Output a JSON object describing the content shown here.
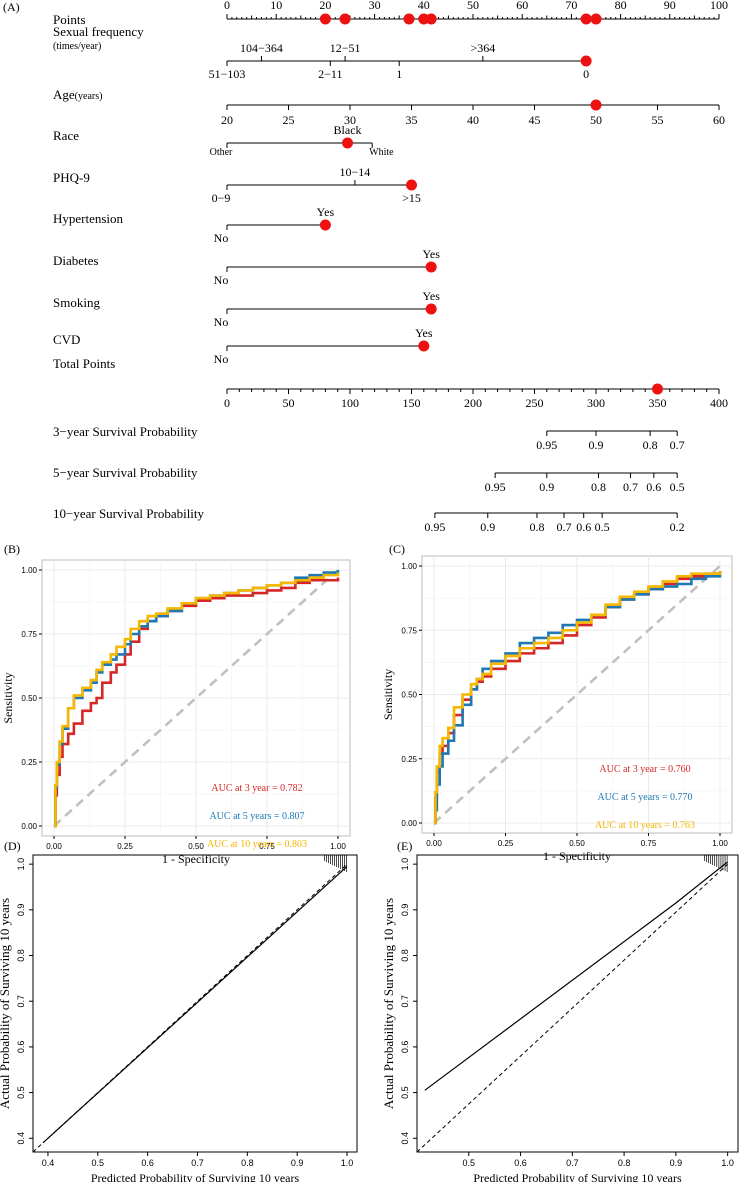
{
  "colors": {
    "axis": "#000000",
    "marker": "#ee1111",
    "roc3": "#d62728",
    "roc5": "#1f77b4",
    "roc10": "#f5b700",
    "diag": "#c0c0c0",
    "grid": "#ebebeb"
  },
  "chart_data": [
    {
      "panel": "A",
      "panel_label": "(A)",
      "type": "nomogram",
      "points_scale": {
        "label": "Points",
        "ticks": [
          0,
          10,
          20,
          30,
          40,
          50,
          60,
          70,
          80,
          90,
          100
        ],
        "markers": [
          20,
          24,
          37,
          40,
          41.5,
          73,
          75
        ]
      },
      "variables": [
        {
          "id": "sexual-frequency",
          "label": "Sexual frequency",
          "sublabel": "(times/year)",
          "top_labels": [
            {
              "text": "104−364",
              "at": 7
            },
            {
              "text": "12−51",
              "at": 24
            },
            {
              "text": ">364",
              "at": 52
            }
          ],
          "bottom_labels": [
            {
              "text": "51−103",
              "at": 0
            },
            {
              "text": "2−11",
              "at": 21
            },
            {
              "text": "1",
              "at": 35
            },
            {
              "text": "0",
              "at": 73
            }
          ],
          "range": [
            0,
            73
          ],
          "marker": 73
        },
        {
          "id": "age",
          "label": "Age",
          "label_suffix": "(years)",
          "ticks": [
            20,
            25,
            30,
            35,
            40,
            45,
            50,
            55,
            60
          ],
          "range": [
            20,
            60
          ],
          "marker": 50
        },
        {
          "id": "race",
          "label": "Race",
          "top_labels": [
            {
              "text": "Black",
              "at": 24.5
            }
          ],
          "bottom_labels": [
            {
              "text": "Other",
              "at": 0
            },
            {
              "text": "White",
              "at": 29.5
            }
          ],
          "range": [
            0,
            29.5
          ],
          "marker": 24.5
        },
        {
          "id": "phq9",
          "label": "PHQ-9",
          "top_labels": [
            {
              "text": "10−14",
              "at": 26
            }
          ],
          "bottom_labels": [
            {
              "text": "0−9",
              "at": 0
            },
            {
              "text": ">15",
              "at": 37.5
            }
          ],
          "range": [
            0,
            37.5
          ],
          "marker": 37.5
        },
        {
          "id": "hypertension",
          "label": "Hypertension",
          "top_labels": [
            {
              "text": "Yes",
              "at": 20
            }
          ],
          "bottom_labels": [
            {
              "text": "No",
              "at": 0
            }
          ],
          "range": [
            0,
            20
          ],
          "marker": 20
        },
        {
          "id": "diabetes",
          "label": "Diabetes",
          "top_labels": [
            {
              "text": "Yes",
              "at": 41.5
            }
          ],
          "bottom_labels": [
            {
              "text": "No",
              "at": 0
            }
          ],
          "range": [
            0,
            41.5
          ],
          "marker": 41.5
        },
        {
          "id": "smoking",
          "label": "Smoking",
          "top_labels": [
            {
              "text": "Yes",
              "at": 41.5
            }
          ],
          "bottom_labels": [
            {
              "text": "No",
              "at": 0
            }
          ],
          "range": [
            0,
            41.5
          ],
          "marker": 41.5
        },
        {
          "id": "cvd",
          "label": "CVD",
          "top_labels": [
            {
              "text": "Yes",
              "at": 40
            }
          ],
          "bottom_labels": [
            {
              "text": "No",
              "at": 0
            }
          ],
          "range": [
            0,
            40
          ],
          "marker": 40
        }
      ],
      "total_points": {
        "label": "Total Points",
        "ticks": [
          0,
          50,
          100,
          150,
          200,
          250,
          300,
          350,
          400
        ],
        "marker": 350
      },
      "survival_scales": [
        {
          "label": "3−year Survival Probability",
          "labels": [
            "0.95",
            "0.9",
            "0.8",
            "0.7"
          ],
          "positions": [
            260,
            300,
            344,
            366
          ],
          "range": [
            260,
            366
          ]
        },
        {
          "label": "5−year Survival Probability",
          "labels": [
            "0.95",
            "0.9",
            "0.8",
            "0.7",
            "0.6",
            "0.5"
          ],
          "positions": [
            218,
            260,
            302,
            328,
            347,
            366
          ],
          "range": [
            218,
            366
          ]
        },
        {
          "label": "10−year Survival Probability",
          "labels": [
            "0.95",
            "0.9",
            "0.8",
            "0.7",
            "0.6",
            "0.5",
            "0.2"
          ],
          "positions": [
            169,
            212,
            252,
            274,
            290,
            305,
            366
          ],
          "range": [
            169,
            366
          ]
        }
      ]
    },
    {
      "panel": "B",
      "panel_label": "(B)",
      "type": "line",
      "subtype": "roc",
      "xlabel": "1 - Specificity",
      "ylabel": "Sensitivity",
      "xlim": [
        0,
        1
      ],
      "ylim": [
        0,
        1
      ],
      "ticks": [
        "0.00",
        "0.25",
        "0.50",
        "0.75",
        "1.00"
      ],
      "series": [
        {
          "name": "3 year",
          "color_key": "roc3",
          "auc_label": "AUC at 3 year = 0.782",
          "x": [
            0,
            0.005,
            0.01,
            0.02,
            0.03,
            0.05,
            0.07,
            0.1,
            0.13,
            0.15,
            0.17,
            0.2,
            0.22,
            0.25,
            0.27,
            0.3,
            0.33,
            0.36,
            0.4,
            0.45,
            0.5,
            0.55,
            0.6,
            0.65,
            0.7,
            0.75,
            0.8,
            0.85,
            0.9,
            0.95,
            1
          ],
          "y": [
            0,
            0.12,
            0.2,
            0.27,
            0.32,
            0.36,
            0.4,
            0.45,
            0.48,
            0.5,
            0.56,
            0.6,
            0.63,
            0.67,
            0.72,
            0.77,
            0.8,
            0.82,
            0.84,
            0.86,
            0.88,
            0.89,
            0.9,
            0.9,
            0.91,
            0.92,
            0.93,
            0.95,
            0.96,
            0.96,
            0.97
          ]
        },
        {
          "name": "5 years",
          "color_key": "roc5",
          "auc_label": "AUC at 5 years = 0.807",
          "x": [
            0,
            0.005,
            0.01,
            0.02,
            0.03,
            0.05,
            0.07,
            0.1,
            0.13,
            0.15,
            0.17,
            0.2,
            0.22,
            0.25,
            0.27,
            0.3,
            0.33,
            0.36,
            0.4,
            0.45,
            0.5,
            0.55,
            0.6,
            0.65,
            0.7,
            0.75,
            0.8,
            0.85,
            0.9,
            0.95,
            1
          ],
          "y": [
            0,
            0.15,
            0.24,
            0.32,
            0.38,
            0.46,
            0.5,
            0.53,
            0.56,
            0.6,
            0.63,
            0.65,
            0.67,
            0.71,
            0.75,
            0.78,
            0.8,
            0.82,
            0.84,
            0.87,
            0.89,
            0.9,
            0.91,
            0.92,
            0.93,
            0.94,
            0.95,
            0.97,
            0.98,
            0.99,
            1
          ]
        },
        {
          "name": "10 years",
          "color_key": "roc10",
          "auc_label": "AUC at 10 years = 0.803",
          "x": [
            0,
            0.005,
            0.01,
            0.02,
            0.03,
            0.05,
            0.07,
            0.1,
            0.13,
            0.15,
            0.17,
            0.2,
            0.22,
            0.25,
            0.27,
            0.3,
            0.33,
            0.36,
            0.4,
            0.45,
            0.5,
            0.55,
            0.6,
            0.65,
            0.7,
            0.75,
            0.8,
            0.85,
            0.9,
            0.95,
            1
          ],
          "y": [
            0,
            0.16,
            0.25,
            0.33,
            0.39,
            0.46,
            0.51,
            0.54,
            0.57,
            0.61,
            0.64,
            0.67,
            0.7,
            0.73,
            0.77,
            0.8,
            0.82,
            0.83,
            0.85,
            0.87,
            0.89,
            0.9,
            0.91,
            0.92,
            0.93,
            0.94,
            0.95,
            0.96,
            0.97,
            0.98,
            0.99
          ]
        }
      ]
    },
    {
      "panel": "C",
      "panel_label": "(C)",
      "type": "line",
      "subtype": "roc",
      "xlabel": "1 - Specificity",
      "ylabel": "Sensitivity",
      "xlim": [
        0,
        1
      ],
      "ylim": [
        0,
        1
      ],
      "ticks": [
        "0.00",
        "0.25",
        "0.50",
        "0.75",
        "1.00"
      ],
      "series": [
        {
          "name": "3 year",
          "color_key": "roc3",
          "auc_label": "AUC at 3 year = 0.760",
          "x": [
            0,
            0.005,
            0.01,
            0.02,
            0.03,
            0.05,
            0.07,
            0.1,
            0.13,
            0.15,
            0.17,
            0.2,
            0.25,
            0.3,
            0.35,
            0.4,
            0.45,
            0.5,
            0.55,
            0.6,
            0.65,
            0.7,
            0.75,
            0.8,
            0.85,
            0.9,
            0.95,
            1
          ],
          "y": [
            0,
            0.1,
            0.2,
            0.27,
            0.3,
            0.35,
            0.42,
            0.48,
            0.52,
            0.55,
            0.57,
            0.6,
            0.63,
            0.66,
            0.68,
            0.7,
            0.73,
            0.77,
            0.8,
            0.84,
            0.87,
            0.89,
            0.91,
            0.93,
            0.95,
            0.96,
            0.97,
            0.98
          ]
        },
        {
          "name": "5 years",
          "color_key": "roc5",
          "auc_label": "AUC at 5 years = 0.770",
          "x": [
            0,
            0.005,
            0.01,
            0.02,
            0.03,
            0.05,
            0.07,
            0.1,
            0.13,
            0.15,
            0.17,
            0.2,
            0.25,
            0.3,
            0.35,
            0.4,
            0.45,
            0.5,
            0.55,
            0.6,
            0.65,
            0.7,
            0.75,
            0.8,
            0.85,
            0.9,
            0.95,
            1
          ],
          "y": [
            0,
            0.05,
            0.15,
            0.22,
            0.27,
            0.32,
            0.38,
            0.46,
            0.52,
            0.56,
            0.6,
            0.63,
            0.66,
            0.7,
            0.72,
            0.74,
            0.77,
            0.79,
            0.81,
            0.84,
            0.87,
            0.89,
            0.91,
            0.92,
            0.93,
            0.95,
            0.96,
            0.98
          ]
        },
        {
          "name": "10 years",
          "color_key": "roc10",
          "auc_label": "AUC at 10 years = 0.763",
          "x": [
            0,
            0.005,
            0.01,
            0.02,
            0.03,
            0.05,
            0.07,
            0.1,
            0.13,
            0.15,
            0.17,
            0.2,
            0.25,
            0.3,
            0.35,
            0.4,
            0.45,
            0.5,
            0.55,
            0.6,
            0.65,
            0.7,
            0.75,
            0.8,
            0.85,
            0.9,
            0.95,
            1
          ],
          "y": [
            0,
            0.12,
            0.22,
            0.3,
            0.33,
            0.37,
            0.45,
            0.5,
            0.54,
            0.56,
            0.58,
            0.62,
            0.65,
            0.68,
            0.7,
            0.72,
            0.75,
            0.78,
            0.81,
            0.85,
            0.88,
            0.9,
            0.92,
            0.94,
            0.96,
            0.97,
            0.97,
            0.98
          ]
        }
      ]
    },
    {
      "panel": "D",
      "panel_label": "(D)",
      "type": "line",
      "subtype": "calibration",
      "xlabel": "Predicted Probability of Surviving 10 years",
      "ylabel": "Actual Probability of Surviving 10 years",
      "xlim": [
        0.37,
        1.02
      ],
      "ylim": [
        0.37,
        1.02
      ],
      "xticks": [
        "0.4",
        "0.5",
        "0.6",
        "0.7",
        "0.8",
        "0.9",
        "1.0"
      ],
      "yticks": [
        "0.4",
        "0.5",
        "0.6",
        "0.7",
        "0.8",
        "0.9",
        "1.0"
      ],
      "series": [
        {
          "name": "calibration",
          "x": [
            0.39,
            1.0
          ],
          "y": [
            0.39,
            0.995
          ]
        }
      ]
    },
    {
      "panel": "E",
      "panel_label": "(E)",
      "type": "line",
      "subtype": "calibration",
      "xlabel": "Predicted Probability of Surviving 10 years",
      "ylabel": "Actual Probability of Surviving 10 years",
      "xlim": [
        0.4,
        1.02
      ],
      "ylim": [
        0.37,
        1.02
      ],
      "xticks": [
        "0.5",
        "0.6",
        "0.7",
        "0.8",
        "0.9",
        "1.0"
      ],
      "yticks": [
        "0.4",
        "0.5",
        "0.6",
        "0.7",
        "0.8",
        "0.9",
        "1.0"
      ],
      "series": [
        {
          "name": "calibration",
          "x": [
            0.415,
            0.9,
            1.0
          ],
          "y": [
            0.505,
            0.915,
            1.005
          ]
        }
      ]
    }
  ]
}
